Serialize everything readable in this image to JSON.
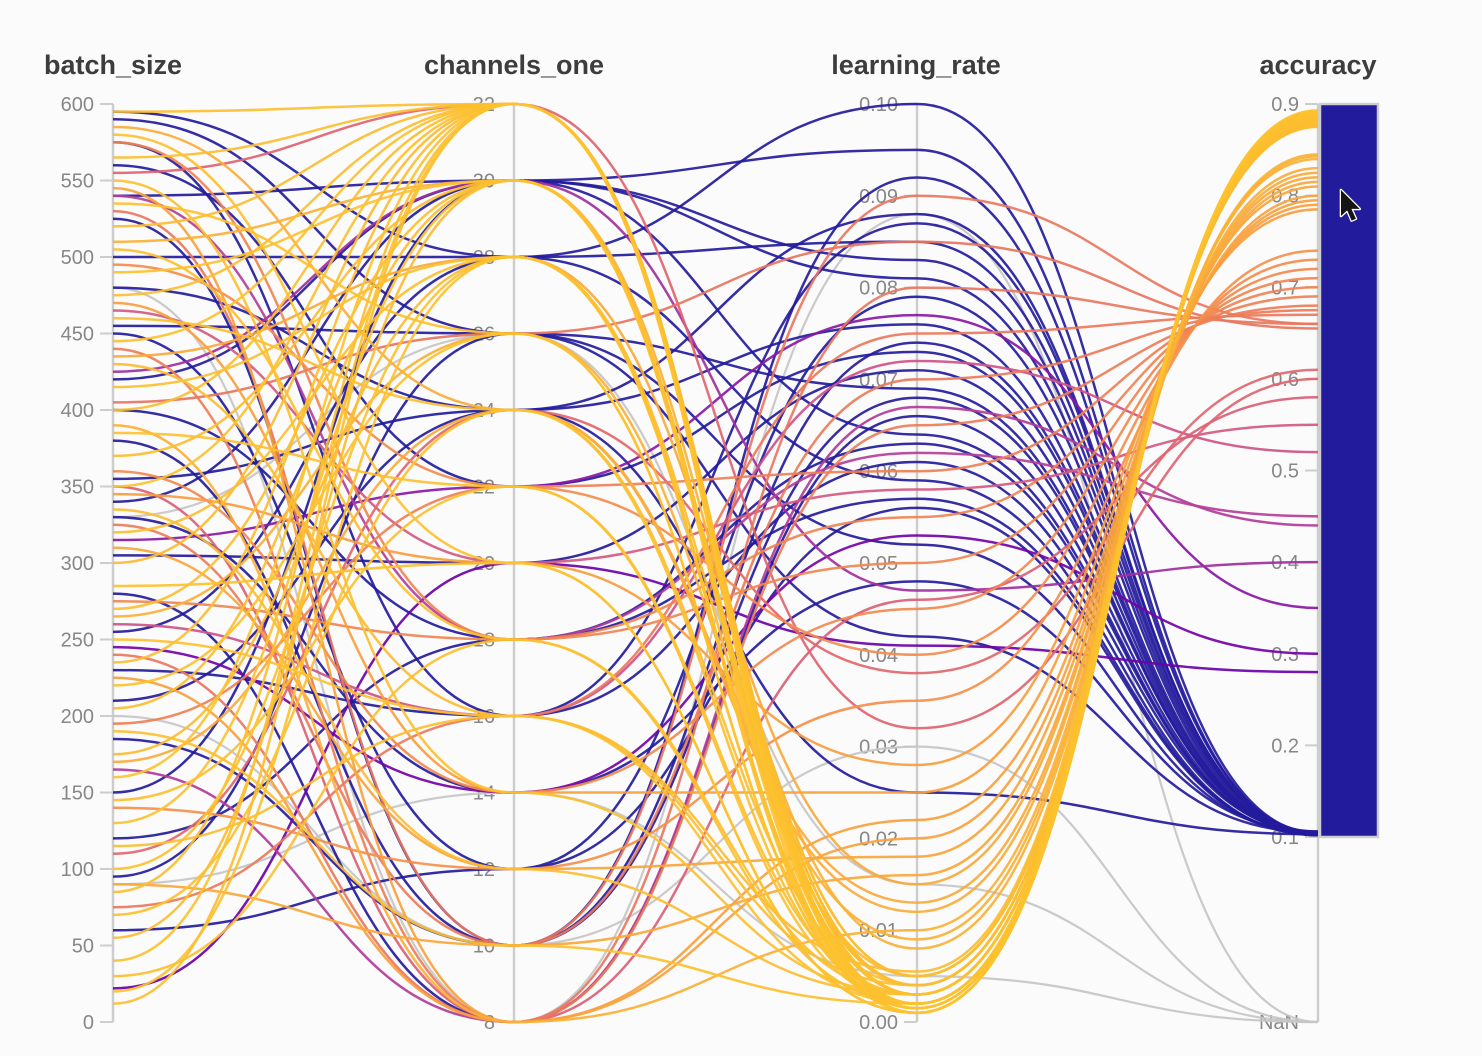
{
  "chart_data": {
    "type": "parallel-coordinates",
    "title": "",
    "color_by": "accuracy",
    "legend_position": "right-colorbar",
    "grid": false,
    "axes": [
      {
        "name": "batch_size",
        "min": 0,
        "max": 600,
        "ticks": [
          {
            "label": "600",
            "value": 600
          },
          {
            "label": "550",
            "value": 550
          },
          {
            "label": "500",
            "value": 500
          },
          {
            "label": "450",
            "value": 450
          },
          {
            "label": "400",
            "value": 400
          },
          {
            "label": "350",
            "value": 350
          },
          {
            "label": "300",
            "value": 300
          },
          {
            "label": "250",
            "value": 250
          },
          {
            "label": "200",
            "value": 200
          },
          {
            "label": "150",
            "value": 150
          },
          {
            "label": "100",
            "value": 100
          },
          {
            "label": "50",
            "value": 50
          },
          {
            "label": "0",
            "value": 0
          }
        ]
      },
      {
        "name": "channels_one",
        "min": 8,
        "max": 32,
        "ticks": [
          {
            "label": "32",
            "value": 32
          },
          {
            "label": "30",
            "value": 30
          },
          {
            "label": "28",
            "value": 28
          },
          {
            "label": "26",
            "value": 26
          },
          {
            "label": "24",
            "value": 24
          },
          {
            "label": "22",
            "value": 22
          },
          {
            "label": "20",
            "value": 20
          },
          {
            "label": "18",
            "value": 18
          },
          {
            "label": "16",
            "value": 16
          },
          {
            "label": "14",
            "value": 14
          },
          {
            "label": "12",
            "value": 12
          },
          {
            "label": "10",
            "value": 10
          },
          {
            "label": "8",
            "value": 8
          }
        ]
      },
      {
        "name": "learning_rate",
        "min": 0,
        "max": 0.1,
        "ticks": [
          {
            "label": "0.10",
            "value": 0.1
          },
          {
            "label": "0.09",
            "value": 0.09
          },
          {
            "label": "0.08",
            "value": 0.08
          },
          {
            "label": "0.07",
            "value": 0.07
          },
          {
            "label": "0.06",
            "value": 0.06
          },
          {
            "label": "0.05",
            "value": 0.05
          },
          {
            "label": "0.04",
            "value": 0.04
          },
          {
            "label": "0.03",
            "value": 0.03
          },
          {
            "label": "0.02",
            "value": 0.02
          },
          {
            "label": "0.01",
            "value": 0.01
          },
          {
            "label": "0.00",
            "value": 0.0
          }
        ]
      },
      {
        "name": "accuracy",
        "min": 0.1,
        "max": 0.9,
        "ticks": [
          {
            "label": "0.9",
            "value": 0.9
          },
          {
            "label": "0.8",
            "value": 0.8
          },
          {
            "label": "0.7",
            "value": 0.7
          },
          {
            "label": "0.6",
            "value": 0.6
          },
          {
            "label": "0.5",
            "value": 0.5
          },
          {
            "label": "0.4",
            "value": 0.4
          },
          {
            "label": "0.3",
            "value": 0.3
          },
          {
            "label": "0.2",
            "value": 0.2
          },
          {
            "label": "0.1",
            "value": 0.1
          },
          {
            "label": "NaN",
            "value": null
          }
        ]
      }
    ],
    "colormap": {
      "stops": [
        {
          "t": 0.0,
          "color": "#221C9C"
        },
        {
          "t": 0.125,
          "color": "#4B03A1"
        },
        {
          "t": 0.25,
          "color": "#7302A8"
        },
        {
          "t": 0.375,
          "color": "#A02FA0"
        },
        {
          "t": 0.5,
          "color": "#C8508F"
        },
        {
          "t": 0.625,
          "color": "#DF6470"
        },
        {
          "t": 0.75,
          "color": "#F08353"
        },
        {
          "t": 0.875,
          "color": "#F9A23C"
        },
        {
          "t": 1.0,
          "color": "#FDC42E"
        }
      ],
      "nan_color": "#c6c6c6",
      "axis_color": "#cdcdcd",
      "tick_label_color": "#878787",
      "title_color": "#3d3d3d",
      "background": "#fbfbfb"
    },
    "columns": [
      "batch_size",
      "channels_one",
      "learning_rate",
      "accuracy"
    ],
    "rows": [
      [
        200,
        10,
        0.03,
        null
      ],
      [
        330,
        26,
        0.015,
        null
      ],
      [
        480,
        8,
        0.088,
        null
      ],
      [
        90,
        14,
        0.005,
        null
      ],
      [
        595,
        28,
        0.085,
        0.103
      ],
      [
        590,
        26,
        0.052,
        0.104
      ],
      [
        575,
        16,
        0.061,
        0.105
      ],
      [
        560,
        22,
        0.073,
        0.102
      ],
      [
        540,
        30,
        0.095,
        0.103
      ],
      [
        525,
        10,
        0.068,
        0.106
      ],
      [
        500,
        28,
        0.1,
        0.104
      ],
      [
        480,
        24,
        0.088,
        0.103
      ],
      [
        455,
        26,
        0.042,
        0.105
      ],
      [
        450,
        12,
        0.079,
        0.102
      ],
      [
        420,
        30,
        0.064,
        0.104
      ],
      [
        400,
        18,
        0.057,
        0.103
      ],
      [
        380,
        10,
        0.092,
        0.105
      ],
      [
        355,
        24,
        0.076,
        0.102
      ],
      [
        340,
        30,
        0.083,
        0.104
      ],
      [
        330,
        14,
        0.048,
        0.106
      ],
      [
        305,
        20,
        0.071,
        0.103
      ],
      [
        280,
        8,
        0.066,
        0.104
      ],
      [
        255,
        28,
        0.059,
        0.102
      ],
      [
        230,
        16,
        0.087,
        0.105
      ],
      [
        210,
        24,
        0.025,
        0.103
      ],
      [
        185,
        10,
        0.074,
        0.104
      ],
      [
        150,
        30,
        0.081,
        0.103
      ],
      [
        120,
        18,
        0.063,
        0.105
      ],
      [
        95,
        26,
        0.069,
        0.104
      ],
      [
        60,
        12,
        0.056,
        0.103
      ],
      [
        540,
        18,
        0.062,
        0.45
      ],
      [
        425,
        30,
        0.047,
        0.4
      ],
      [
        315,
        22,
        0.077,
        0.35
      ],
      [
        245,
        14,
        0.053,
        0.3
      ],
      [
        165,
        8,
        0.067,
        0.44
      ],
      [
        22,
        20,
        0.041,
        0.28
      ],
      [
        555,
        32,
        0.032,
        0.6
      ],
      [
        465,
        20,
        0.058,
        0.55
      ],
      [
        350,
        8,
        0.046,
        0.58
      ],
      [
        260,
        16,
        0.072,
        0.52
      ],
      [
        110,
        24,
        0.038,
        0.61
      ],
      [
        575,
        18,
        0.055,
        0.7
      ],
      [
        530,
        10,
        0.09,
        0.66
      ],
      [
        495,
        22,
        0.04,
        0.73
      ],
      [
        440,
        8,
        0.065,
        0.68
      ],
      [
        405,
        26,
        0.085,
        0.655
      ],
      [
        360,
        14,
        0.045,
        0.72
      ],
      [
        325,
        10,
        0.07,
        0.675
      ],
      [
        275,
        18,
        0.05,
        0.71
      ],
      [
        240,
        8,
        0.08,
        0.66
      ],
      [
        195,
        22,
        0.06,
        0.69
      ],
      [
        140,
        12,
        0.035,
        0.74
      ],
      [
        75,
        16,
        0.075,
        0.67
      ],
      [
        585,
        24,
        0.012,
        0.83
      ],
      [
        545,
        8,
        0.02,
        0.8
      ],
      [
        510,
        30,
        0.008,
        0.845
      ],
      [
        470,
        14,
        0.025,
        0.79
      ],
      [
        435,
        28,
        0.015,
        0.82
      ],
      [
        390,
        8,
        0.01,
        0.84
      ],
      [
        345,
        20,
        0.028,
        0.785
      ],
      [
        310,
        12,
        0.018,
        0.81
      ],
      [
        265,
        26,
        0.009,
        0.843
      ],
      [
        225,
        8,
        0.022,
        0.795
      ],
      [
        170,
        24,
        0.013,
        0.825
      ],
      [
        90,
        10,
        0.016,
        0.815
      ],
      [
        595,
        32,
        0.002,
        0.885
      ],
      [
        580,
        20,
        0.001,
        0.889
      ],
      [
        565,
        32,
        0.004,
        0.882
      ],
      [
        550,
        14,
        0.003,
        0.887
      ],
      [
        535,
        26,
        0.0015,
        0.891
      ],
      [
        520,
        32,
        0.005,
        0.879
      ],
      [
        505,
        18,
        0.002,
        0.884
      ],
      [
        490,
        30,
        0.001,
        0.888
      ],
      [
        475,
        32,
        0.003,
        0.886
      ],
      [
        460,
        24,
        0.004,
        0.881
      ],
      [
        445,
        32,
        0.002,
        0.89
      ],
      [
        430,
        16,
        0.0055,
        0.877
      ],
      [
        415,
        28,
        0.001,
        0.887
      ],
      [
        400,
        32,
        0.003,
        0.883
      ],
      [
        385,
        22,
        0.002,
        0.889
      ],
      [
        370,
        30,
        0.004,
        0.88
      ],
      [
        350,
        32,
        0.0015,
        0.892
      ],
      [
        335,
        12,
        0.003,
        0.878
      ],
      [
        320,
        28,
        0.002,
        0.886
      ],
      [
        300,
        32,
        0.005,
        0.875
      ],
      [
        285,
        20,
        0.001,
        0.89
      ],
      [
        270,
        30,
        0.003,
        0.884
      ],
      [
        250,
        16,
        0.002,
        0.888
      ],
      [
        235,
        32,
        0.004,
        0.879
      ],
      [
        220,
        26,
        0.0015,
        0.891
      ],
      [
        205,
        30,
        0.003,
        0.882
      ],
      [
        190,
        10,
        0.002,
        0.887
      ],
      [
        175,
        28,
        0.005,
        0.876
      ],
      [
        160,
        32,
        0.001,
        0.893
      ],
      [
        145,
        22,
        0.003,
        0.885
      ],
      [
        130,
        30,
        0.002,
        0.888
      ],
      [
        115,
        16,
        0.004,
        0.878
      ],
      [
        100,
        28,
        0.0015,
        0.89
      ],
      [
        85,
        32,
        0.003,
        0.883
      ],
      [
        70,
        24,
        0.002,
        0.887
      ],
      [
        55,
        30,
        0.004,
        0.877
      ],
      [
        40,
        32,
        0.0015,
        0.891
      ],
      [
        30,
        18,
        0.003,
        0.884
      ],
      [
        20,
        28,
        0.002,
        0.888
      ],
      [
        12,
        32,
        0.004,
        0.88
      ]
    ]
  },
  "cursor": {
    "visible": true
  }
}
